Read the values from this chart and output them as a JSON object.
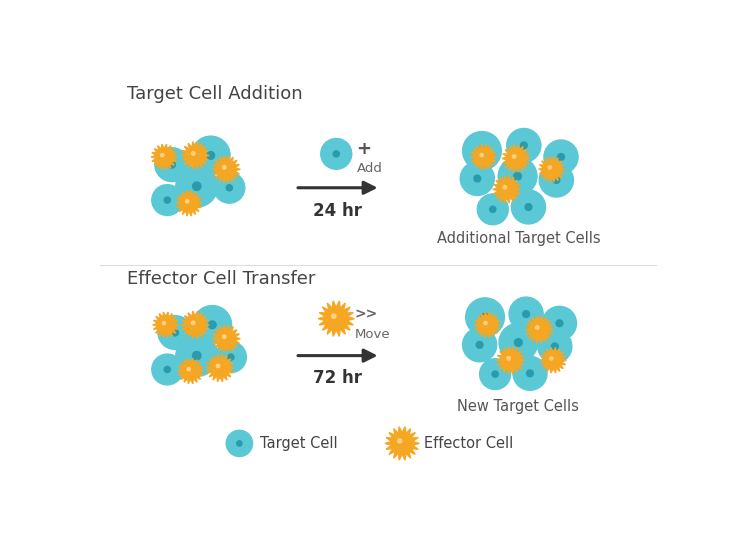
{
  "background_color": "#ffffff",
  "target_cell_color": "#5bc8d5",
  "target_cell_dot_color": "#2a9aad",
  "effector_cell_color": "#f5a623",
  "section1_label": "Target Cell Addition",
  "section2_label": "Effector Cell Transfer",
  "arrow1_label": "24 hr",
  "arrow2_label": "72 hr",
  "result1_label": "Additional Target Cells",
  "result2_label": "New Target Cells",
  "legend_target": "Target Cell",
  "legend_effector": "Effector Cell",
  "label_fontsize": 13,
  "sublabel_fontsize": 10.5,
  "legend_fontsize": 10.5
}
